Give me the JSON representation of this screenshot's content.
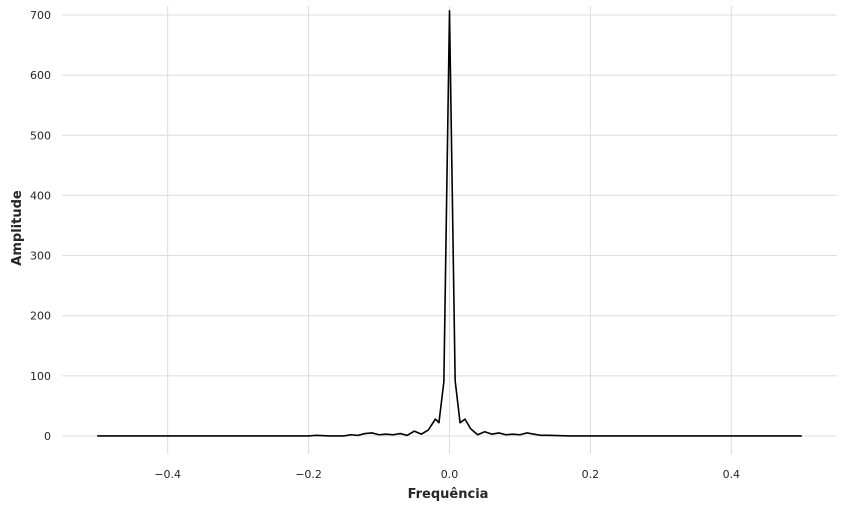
{
  "chart_data": {
    "type": "line",
    "title": "",
    "xlabel": "Frequência",
    "ylabel": "Amplitude",
    "xlim": [
      -0.55,
      0.55
    ],
    "ylim": [
      -30,
      715
    ],
    "grid": true,
    "line_color": "#000000",
    "grid_color": "#dcdcdc",
    "x_ticks": [
      -0.4,
      -0.2,
      0.0,
      0.2,
      0.4
    ],
    "x_tick_labels": [
      "−0.4",
      "−0.2",
      "0.0",
      "0.2",
      "0.4"
    ],
    "y_ticks": [
      0,
      100,
      200,
      300,
      400,
      500,
      600,
      700
    ],
    "y_tick_labels": [
      "0",
      "100",
      "200",
      "300",
      "400",
      "500",
      "600",
      "700"
    ],
    "series": [
      {
        "x": [
          -0.5,
          -0.4,
          -0.3,
          -0.25,
          -0.2,
          -0.19,
          -0.17,
          -0.15,
          -0.14,
          -0.13,
          -0.12,
          -0.11,
          -0.1,
          -0.09,
          -0.08,
          -0.07,
          -0.06,
          -0.05,
          -0.04,
          -0.03,
          -0.02,
          -0.015,
          -0.008,
          0.0,
          0.008,
          0.015,
          0.022,
          0.03,
          0.04,
          0.05,
          0.06,
          0.07,
          0.08,
          0.09,
          0.1,
          0.11,
          0.12,
          0.13,
          0.14,
          0.17,
          0.2,
          0.25,
          0.3,
          0.4,
          0.5
        ],
        "y": [
          0,
          0,
          0,
          0,
          0,
          1,
          0,
          0,
          2,
          1,
          4,
          5,
          2,
          3,
          2,
          4,
          1,
          8,
          3,
          10,
          28,
          22,
          90,
          707,
          92,
          22,
          28,
          12,
          2,
          7,
          3,
          5,
          2,
          3,
          2,
          5,
          3,
          1,
          1,
          0,
          0,
          0,
          0,
          0,
          0
        ]
      }
    ]
  }
}
